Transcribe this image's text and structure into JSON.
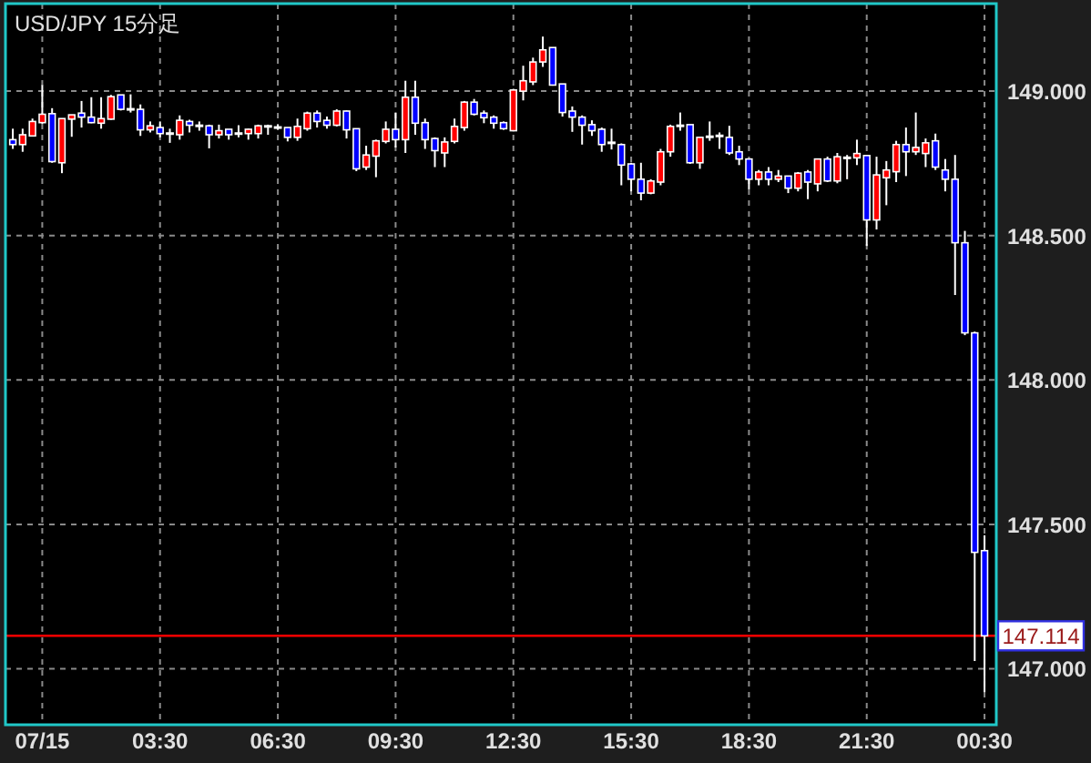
{
  "chart_data": {
    "type": "candlestick",
    "title": "USD/JPY 15分足",
    "categories": [
      null,
      null,
      null,
      "07/15",
      null,
      null,
      null,
      null,
      null,
      null,
      null,
      null,
      null,
      null,
      null,
      "03:30",
      null,
      null,
      null,
      null,
      null,
      null,
      null,
      null,
      null,
      null,
      null,
      "06:30",
      null,
      null,
      null,
      null,
      null,
      null,
      null,
      null,
      null,
      null,
      null,
      "09:30",
      null,
      null,
      null,
      null,
      null,
      null,
      null,
      null,
      null,
      null,
      null,
      "12:30",
      null,
      null,
      null,
      null,
      null,
      null,
      null,
      null,
      null,
      null,
      null,
      "15:30",
      null,
      null,
      null,
      null,
      null,
      null,
      null,
      null,
      null,
      null,
      null,
      "18:30",
      null,
      null,
      null,
      null,
      null,
      null,
      null,
      null,
      null,
      null,
      null,
      "21:30",
      null,
      null,
      null,
      null,
      null,
      null,
      null,
      null,
      null,
      null,
      null,
      "00:30"
    ],
    "ohlc": [
      [
        148.832,
        148.87,
        148.8,
        148.815
      ],
      [
        148.815,
        148.87,
        148.79,
        148.849
      ],
      [
        148.845,
        148.905,
        148.843,
        148.895
      ],
      [
        148.891,
        149.021,
        148.887,
        148.92
      ],
      [
        148.922,
        148.941,
        148.752,
        148.756
      ],
      [
        148.752,
        148.905,
        148.716,
        148.905
      ],
      [
        148.903,
        148.918,
        148.842,
        148.918
      ],
      [
        148.924,
        148.966,
        148.874,
        148.91
      ],
      [
        148.91,
        148.979,
        148.889,
        148.891
      ],
      [
        148.889,
        148.979,
        148.87,
        148.905
      ],
      [
        148.903,
        148.987,
        148.901,
        148.981
      ],
      [
        148.987,
        148.987,
        148.933,
        148.937
      ],
      [
        148.937,
        148.989,
        148.926,
        148.937
      ],
      [
        148.937,
        148.954,
        148.845,
        148.866
      ],
      [
        148.866,
        148.895,
        148.857,
        148.88
      ],
      [
        148.874,
        148.895,
        148.84,
        148.853
      ],
      [
        148.853,
        148.87,
        148.821,
        148.853
      ],
      [
        148.849,
        148.916,
        148.832,
        148.899
      ],
      [
        148.895,
        148.901,
        148.857,
        148.882
      ],
      [
        148.88,
        148.895,
        148.863,
        148.88
      ],
      [
        148.88,
        148.884,
        148.802,
        148.849
      ],
      [
        148.849,
        148.884,
        148.836,
        148.863
      ],
      [
        148.868,
        148.868,
        148.832,
        148.849
      ],
      [
        148.853,
        148.882,
        148.84,
        148.853
      ],
      [
        148.853,
        148.87,
        148.832,
        148.868
      ],
      [
        148.853,
        148.884,
        148.836,
        148.88
      ],
      [
        148.878,
        148.884,
        148.849,
        148.878
      ],
      [
        148.874,
        148.884,
        148.866,
        148.874
      ],
      [
        148.874,
        148.874,
        148.826,
        148.84
      ],
      [
        148.84,
        148.905,
        148.828,
        148.878
      ],
      [
        148.87,
        148.929,
        148.863,
        148.924
      ],
      [
        148.924,
        148.933,
        148.874,
        148.895
      ],
      [
        148.899,
        148.912,
        148.87,
        148.882
      ],
      [
        148.882,
        148.937,
        148.878,
        148.931
      ],
      [
        148.931,
        148.933,
        148.836,
        148.866
      ],
      [
        148.87,
        148.87,
        148.723,
        148.731
      ],
      [
        148.737,
        148.811,
        148.727,
        148.779
      ],
      [
        148.775,
        148.832,
        148.702,
        148.828
      ],
      [
        148.826,
        148.895,
        148.819,
        148.868
      ],
      [
        148.868,
        148.926,
        148.805,
        148.832
      ],
      [
        148.832,
        149.036,
        148.786,
        148.979
      ],
      [
        148.979,
        149.036,
        148.849,
        148.889
      ],
      [
        148.891,
        148.905,
        148.8,
        148.832
      ],
      [
        148.836,
        148.84,
        148.737,
        148.794
      ],
      [
        148.786,
        148.84,
        148.737,
        148.824
      ],
      [
        148.826,
        148.905,
        148.819,
        148.878
      ],
      [
        148.874,
        148.966,
        148.863,
        148.962
      ],
      [
        148.962,
        148.973,
        148.916,
        148.92
      ],
      [
        148.924,
        148.933,
        148.889,
        148.908
      ],
      [
        148.91,
        148.916,
        148.87,
        148.889
      ],
      [
        148.891,
        148.895,
        148.866,
        148.87
      ],
      [
        148.863,
        149.008,
        148.861,
        149.004
      ],
      [
        149.0,
        149.088,
        148.968,
        149.036
      ],
      [
        149.032,
        149.116,
        149.021,
        149.101
      ],
      [
        149.101,
        149.189,
        149.084,
        149.143
      ],
      [
        149.151,
        149.151,
        149.019,
        149.021
      ],
      [
        149.025,
        149.025,
        148.912,
        148.926
      ],
      [
        148.931,
        148.947,
        148.859,
        148.91
      ],
      [
        148.91,
        148.916,
        148.815,
        148.882
      ],
      [
        148.884,
        148.899,
        148.845,
        148.863
      ],
      [
        148.868,
        148.874,
        148.79,
        148.815
      ],
      [
        148.821,
        148.87,
        148.798,
        148.821
      ],
      [
        148.815,
        148.819,
        148.674,
        148.744
      ],
      [
        148.748,
        148.752,
        148.653,
        148.695
      ],
      [
        148.695,
        148.752,
        148.622,
        148.647
      ],
      [
        148.647,
        148.695,
        148.643,
        148.689
      ],
      [
        148.685,
        148.8,
        148.674,
        148.79
      ],
      [
        148.79,
        148.884,
        148.773,
        148.878
      ],
      [
        148.88,
        148.926,
        148.863,
        148.88
      ],
      [
        148.884,
        148.884,
        148.748,
        148.752
      ],
      [
        148.752,
        148.84,
        148.731,
        148.84
      ],
      [
        148.842,
        148.895,
        148.828,
        148.842
      ],
      [
        148.845,
        148.857,
        148.8,
        148.845
      ],
      [
        148.84,
        148.88,
        148.779,
        148.786
      ],
      [
        148.79,
        148.811,
        148.744,
        148.765
      ],
      [
        148.765,
        148.765,
        148.66,
        148.695
      ],
      [
        148.695,
        148.727,
        148.674,
        148.72
      ],
      [
        148.72,
        148.737,
        148.674,
        148.695
      ],
      [
        148.695,
        148.727,
        148.685,
        148.706
      ],
      [
        148.706,
        148.706,
        148.647,
        148.664
      ],
      [
        148.664,
        148.72,
        148.653,
        148.716
      ],
      [
        148.72,
        148.727,
        148.626,
        148.685
      ],
      [
        148.679,
        148.765,
        148.653,
        148.765
      ],
      [
        148.765,
        148.773,
        148.685,
        148.689
      ],
      [
        148.689,
        148.786,
        148.681,
        148.773
      ],
      [
        148.769,
        148.779,
        148.695,
        148.769
      ],
      [
        148.769,
        148.832,
        148.744,
        148.784
      ],
      [
        148.777,
        148.777,
        148.464,
        148.554
      ],
      [
        148.554,
        148.773,
        148.521,
        148.71
      ],
      [
        148.7,
        148.758,
        148.605,
        148.727
      ],
      [
        148.721,
        148.828,
        148.685,
        148.815
      ],
      [
        148.815,
        148.874,
        148.706,
        148.79
      ],
      [
        148.79,
        148.926,
        148.779,
        148.805
      ],
      [
        148.784,
        148.836,
        148.737,
        148.821
      ],
      [
        148.828,
        148.853,
        148.727,
        148.737
      ],
      [
        148.727,
        148.765,
        148.653,
        148.695
      ],
      [
        148.695,
        148.779,
        148.294,
        148.475
      ],
      [
        148.475,
        148.516,
        148.155,
        148.163
      ],
      [
        148.163,
        148.167,
        147.027,
        147.403
      ],
      [
        147.409,
        147.462,
        146.919,
        147.114
      ]
    ],
    "colors": [
      "#0000ff",
      "#ff0000",
      "#ff0000",
      "#ff0000",
      "#0000ff",
      "#ff0000",
      "#ff0000",
      "#0000ff",
      "#0000ff",
      "#ff0000",
      "#ff0000",
      "#0000ff",
      "#ffffff",
      "#0000ff",
      "#ff0000",
      "#0000ff",
      "#ffffff",
      "#ff0000",
      "#0000ff",
      "#ffffff",
      "#0000ff",
      "#ff0000",
      "#0000ff",
      "#ffffff",
      "#ff0000",
      "#ff0000",
      "#ffffff",
      "#ffffff",
      "#0000ff",
      "#ff0000",
      "#ff0000",
      "#0000ff",
      "#0000ff",
      "#ff0000",
      "#0000ff",
      "#0000ff",
      "#ff0000",
      "#ff0000",
      "#ff0000",
      "#0000ff",
      "#ff0000",
      "#0000ff",
      "#0000ff",
      "#0000ff",
      "#ff0000",
      "#ff0000",
      "#ff0000",
      "#0000ff",
      "#0000ff",
      "#0000ff",
      "#0000ff",
      "#ff0000",
      "#ff0000",
      "#ff0000",
      "#ff0000",
      "#0000ff",
      "#0000ff",
      "#0000ff",
      "#0000ff",
      "#0000ff",
      "#0000ff",
      "#ffffff",
      "#0000ff",
      "#0000ff",
      "#0000ff",
      "#ff0000",
      "#ff0000",
      "#ff0000",
      "#ffffff",
      "#0000ff",
      "#ff0000",
      "#ffffff",
      "#ffffff",
      "#0000ff",
      "#0000ff",
      "#0000ff",
      "#ff0000",
      "#0000ff",
      "#ff0000",
      "#0000ff",
      "#ff0000",
      "#0000ff",
      "#ff0000",
      "#0000ff",
      "#ff0000",
      "#ffffff",
      "#ff0000",
      "#0000ff",
      "#ff0000",
      "#ff0000",
      "#ff0000",
      "#0000ff",
      "#ff0000",
      "#ff0000",
      "#0000ff",
      "#0000ff",
      "#0000ff",
      "#0000ff",
      "#0000ff",
      "#0000ff"
    ],
    "ylim": [
      146.806,
      149.303
    ],
    "yticks": [
      {
        "value": 147,
        "label": "147.000"
      },
      {
        "value": 147.5,
        "label": "147.500"
      },
      {
        "value": 148,
        "label": "148.000"
      },
      {
        "value": 148.5,
        "label": "148.500"
      },
      {
        "value": 149,
        "label": "149.000"
      }
    ],
    "ref_lines": [
      {
        "axis": "y",
        "value": 147.114,
        "label": "147.114",
        "color": "#ff0000"
      }
    ],
    "grid": true
  }
}
